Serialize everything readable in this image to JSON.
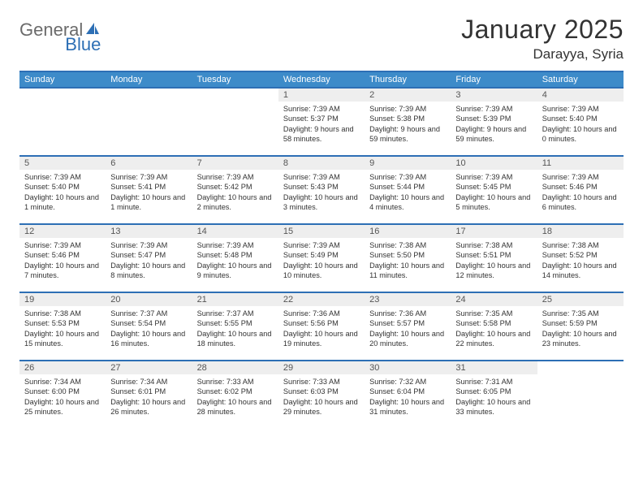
{
  "logo": {
    "text_gray": "General",
    "text_blue": "Blue"
  },
  "title": "January 2025",
  "location": "Darayya, Syria",
  "colors": {
    "header_bg": "#3d8bc9",
    "header_border": "#2d6fb5",
    "daynum_bg": "#eeeeee",
    "text": "#333333",
    "logo_gray": "#6b6b6b",
    "logo_blue": "#2d6fb5"
  },
  "day_names": [
    "Sunday",
    "Monday",
    "Tuesday",
    "Wednesday",
    "Thursday",
    "Friday",
    "Saturday"
  ],
  "weeks": [
    [
      {
        "n": "",
        "sr": "",
        "ss": "",
        "dl": ""
      },
      {
        "n": "",
        "sr": "",
        "ss": "",
        "dl": ""
      },
      {
        "n": "",
        "sr": "",
        "ss": "",
        "dl": ""
      },
      {
        "n": "1",
        "sr": "Sunrise: 7:39 AM",
        "ss": "Sunset: 5:37 PM",
        "dl": "Daylight: 9 hours and 58 minutes."
      },
      {
        "n": "2",
        "sr": "Sunrise: 7:39 AM",
        "ss": "Sunset: 5:38 PM",
        "dl": "Daylight: 9 hours and 59 minutes."
      },
      {
        "n": "3",
        "sr": "Sunrise: 7:39 AM",
        "ss": "Sunset: 5:39 PM",
        "dl": "Daylight: 9 hours and 59 minutes."
      },
      {
        "n": "4",
        "sr": "Sunrise: 7:39 AM",
        "ss": "Sunset: 5:40 PM",
        "dl": "Daylight: 10 hours and 0 minutes."
      }
    ],
    [
      {
        "n": "5",
        "sr": "Sunrise: 7:39 AM",
        "ss": "Sunset: 5:40 PM",
        "dl": "Daylight: 10 hours and 1 minute."
      },
      {
        "n": "6",
        "sr": "Sunrise: 7:39 AM",
        "ss": "Sunset: 5:41 PM",
        "dl": "Daylight: 10 hours and 1 minute."
      },
      {
        "n": "7",
        "sr": "Sunrise: 7:39 AM",
        "ss": "Sunset: 5:42 PM",
        "dl": "Daylight: 10 hours and 2 minutes."
      },
      {
        "n": "8",
        "sr": "Sunrise: 7:39 AM",
        "ss": "Sunset: 5:43 PM",
        "dl": "Daylight: 10 hours and 3 minutes."
      },
      {
        "n": "9",
        "sr": "Sunrise: 7:39 AM",
        "ss": "Sunset: 5:44 PM",
        "dl": "Daylight: 10 hours and 4 minutes."
      },
      {
        "n": "10",
        "sr": "Sunrise: 7:39 AM",
        "ss": "Sunset: 5:45 PM",
        "dl": "Daylight: 10 hours and 5 minutes."
      },
      {
        "n": "11",
        "sr": "Sunrise: 7:39 AM",
        "ss": "Sunset: 5:46 PM",
        "dl": "Daylight: 10 hours and 6 minutes."
      }
    ],
    [
      {
        "n": "12",
        "sr": "Sunrise: 7:39 AM",
        "ss": "Sunset: 5:46 PM",
        "dl": "Daylight: 10 hours and 7 minutes."
      },
      {
        "n": "13",
        "sr": "Sunrise: 7:39 AM",
        "ss": "Sunset: 5:47 PM",
        "dl": "Daylight: 10 hours and 8 minutes."
      },
      {
        "n": "14",
        "sr": "Sunrise: 7:39 AM",
        "ss": "Sunset: 5:48 PM",
        "dl": "Daylight: 10 hours and 9 minutes."
      },
      {
        "n": "15",
        "sr": "Sunrise: 7:39 AM",
        "ss": "Sunset: 5:49 PM",
        "dl": "Daylight: 10 hours and 10 minutes."
      },
      {
        "n": "16",
        "sr": "Sunrise: 7:38 AM",
        "ss": "Sunset: 5:50 PM",
        "dl": "Daylight: 10 hours and 11 minutes."
      },
      {
        "n": "17",
        "sr": "Sunrise: 7:38 AM",
        "ss": "Sunset: 5:51 PM",
        "dl": "Daylight: 10 hours and 12 minutes."
      },
      {
        "n": "18",
        "sr": "Sunrise: 7:38 AM",
        "ss": "Sunset: 5:52 PM",
        "dl": "Daylight: 10 hours and 14 minutes."
      }
    ],
    [
      {
        "n": "19",
        "sr": "Sunrise: 7:38 AM",
        "ss": "Sunset: 5:53 PM",
        "dl": "Daylight: 10 hours and 15 minutes."
      },
      {
        "n": "20",
        "sr": "Sunrise: 7:37 AM",
        "ss": "Sunset: 5:54 PM",
        "dl": "Daylight: 10 hours and 16 minutes."
      },
      {
        "n": "21",
        "sr": "Sunrise: 7:37 AM",
        "ss": "Sunset: 5:55 PM",
        "dl": "Daylight: 10 hours and 18 minutes."
      },
      {
        "n": "22",
        "sr": "Sunrise: 7:36 AM",
        "ss": "Sunset: 5:56 PM",
        "dl": "Daylight: 10 hours and 19 minutes."
      },
      {
        "n": "23",
        "sr": "Sunrise: 7:36 AM",
        "ss": "Sunset: 5:57 PM",
        "dl": "Daylight: 10 hours and 20 minutes."
      },
      {
        "n": "24",
        "sr": "Sunrise: 7:35 AM",
        "ss": "Sunset: 5:58 PM",
        "dl": "Daylight: 10 hours and 22 minutes."
      },
      {
        "n": "25",
        "sr": "Sunrise: 7:35 AM",
        "ss": "Sunset: 5:59 PM",
        "dl": "Daylight: 10 hours and 23 minutes."
      }
    ],
    [
      {
        "n": "26",
        "sr": "Sunrise: 7:34 AM",
        "ss": "Sunset: 6:00 PM",
        "dl": "Daylight: 10 hours and 25 minutes."
      },
      {
        "n": "27",
        "sr": "Sunrise: 7:34 AM",
        "ss": "Sunset: 6:01 PM",
        "dl": "Daylight: 10 hours and 26 minutes."
      },
      {
        "n": "28",
        "sr": "Sunrise: 7:33 AM",
        "ss": "Sunset: 6:02 PM",
        "dl": "Daylight: 10 hours and 28 minutes."
      },
      {
        "n": "29",
        "sr": "Sunrise: 7:33 AM",
        "ss": "Sunset: 6:03 PM",
        "dl": "Daylight: 10 hours and 29 minutes."
      },
      {
        "n": "30",
        "sr": "Sunrise: 7:32 AM",
        "ss": "Sunset: 6:04 PM",
        "dl": "Daylight: 10 hours and 31 minutes."
      },
      {
        "n": "31",
        "sr": "Sunrise: 7:31 AM",
        "ss": "Sunset: 6:05 PM",
        "dl": "Daylight: 10 hours and 33 minutes."
      },
      {
        "n": "",
        "sr": "",
        "ss": "",
        "dl": ""
      }
    ]
  ]
}
